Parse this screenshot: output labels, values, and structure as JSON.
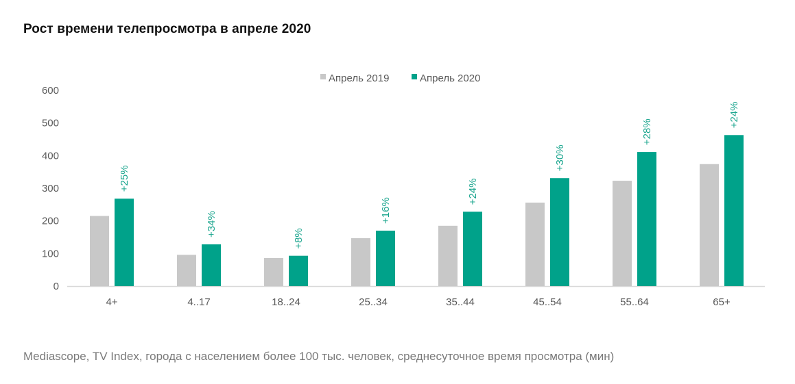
{
  "title": "Рост времени телепросмотра в апреле 2020",
  "footer": "Mediascope, TV Index, города с населением более 100 тыс. человек, среднесуточное время просмотра (мин)",
  "colors": {
    "series_2019": "#c8c8c8",
    "series_2020": "#00a28a",
    "label": "#1aa58e",
    "axis": "#d9d9d9",
    "text": "#595959"
  },
  "chart_data": {
    "type": "bar",
    "title": "Рост времени телепросмотра в апреле 2020",
    "xlabel": "",
    "ylabel": "",
    "ylim": [
      0,
      600
    ],
    "yticks": [
      0,
      100,
      200,
      300,
      400,
      500,
      600
    ],
    "grid": false,
    "legend_position": "top-center",
    "categories": [
      "4+",
      "4..17",
      "18..24",
      "25..34",
      "35..44",
      "45..54",
      "55..64",
      "65+"
    ],
    "series": [
      {
        "name": "Апрель 2019",
        "values": [
          215,
          96,
          86,
          147,
          185,
          256,
          323,
          374
        ]
      },
      {
        "name": "Апрель 2020",
        "values": [
          268,
          128,
          93,
          170,
          228,
          331,
          411,
          463
        ]
      }
    ],
    "annotations": [
      "+25%",
      "+34%",
      "+8%",
      "+16%",
      "+24%",
      "+30%",
      "+28%",
      "+24%"
    ]
  }
}
